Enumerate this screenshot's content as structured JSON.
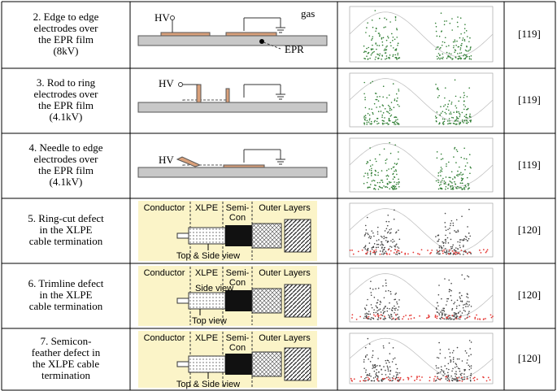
{
  "table": {
    "rows": [
      {
        "description": [
          "2. Edge to edge",
          "electrodes over",
          "the EPR film",
          "(8kV)"
        ],
        "reference": "[119]",
        "diagram": {
          "kind": "edge",
          "hv": "HV",
          "gas": "gas",
          "film": "EPR"
        }
      },
      {
        "description": [
          "3. Rod to ring",
          "electrodes over",
          "the EPR film",
          "(4.1kV)"
        ],
        "reference": "[119]",
        "diagram": {
          "kind": "rod",
          "hv": "HV"
        }
      },
      {
        "description": [
          "4. Needle to edge",
          "electrodes over",
          "the EPR film",
          "(4.1kV)"
        ],
        "reference": "[119]",
        "diagram": {
          "kind": "needle",
          "hv": "HV"
        }
      },
      {
        "description": [
          "5. Ring-cut defect",
          "in the XLPE",
          "cable termination"
        ],
        "reference": "[120]",
        "diagram": {
          "kind": "cable",
          "conductor": "Conductor",
          "xlpe": "XLPE",
          "semicon": [
            "Semi-",
            "Con"
          ],
          "outer": "Outer Layers",
          "views": [
            "Top & Side view"
          ]
        }
      },
      {
        "description": [
          "6. Trimline defect",
          "in the XLPE",
          "cable termination"
        ],
        "reference": "[120]",
        "diagram": {
          "kind": "cable",
          "conductor": "Conductor",
          "xlpe": "XLPE",
          "semicon": [
            "Semi-",
            "Con"
          ],
          "outer": "Outer Layers",
          "views": [
            "Side view",
            "Top view"
          ]
        }
      },
      {
        "description": [
          "7. Semicon-",
          "feather defect in",
          "the XLPE cable",
          "termination"
        ],
        "reference": "[120]",
        "diagram": {
          "kind": "cable",
          "conductor": "Conductor",
          "xlpe": "XLPE",
          "semicon": [
            "Semi-",
            "Con"
          ],
          "outer": "Outer Layers",
          "views": [
            "Top & Side view"
          ]
        }
      }
    ]
  }
}
